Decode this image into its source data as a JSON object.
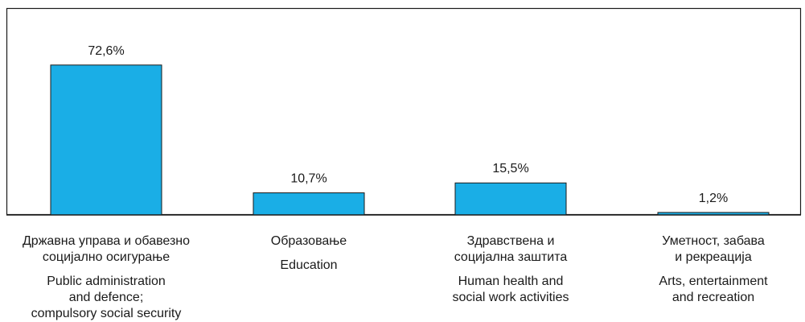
{
  "chart_data": {
    "type": "bar",
    "categories": [
      "Државна управа и обавезно\nсоцијално осигурање",
      "Образовање",
      "Здравствена и\nсоцијална заштита",
      "Уметност, забава\nи рекреација"
    ],
    "categories_en": [
      "Public administration\nand defence;\ncompulsory social security",
      "Education",
      "Human health and\nsocial work activities",
      "Arts, entertainment\nand recreation"
    ],
    "values": [
      72.6,
      10.7,
      15.5,
      1.2
    ],
    "value_labels": [
      "72,6%",
      "10,7%",
      "15,5%",
      "1,2%"
    ],
    "ylim": [
      0,
      100
    ],
    "grid": false,
    "colors": {
      "bar": "#1aaee6",
      "outline": "#1a1a1a"
    }
  }
}
